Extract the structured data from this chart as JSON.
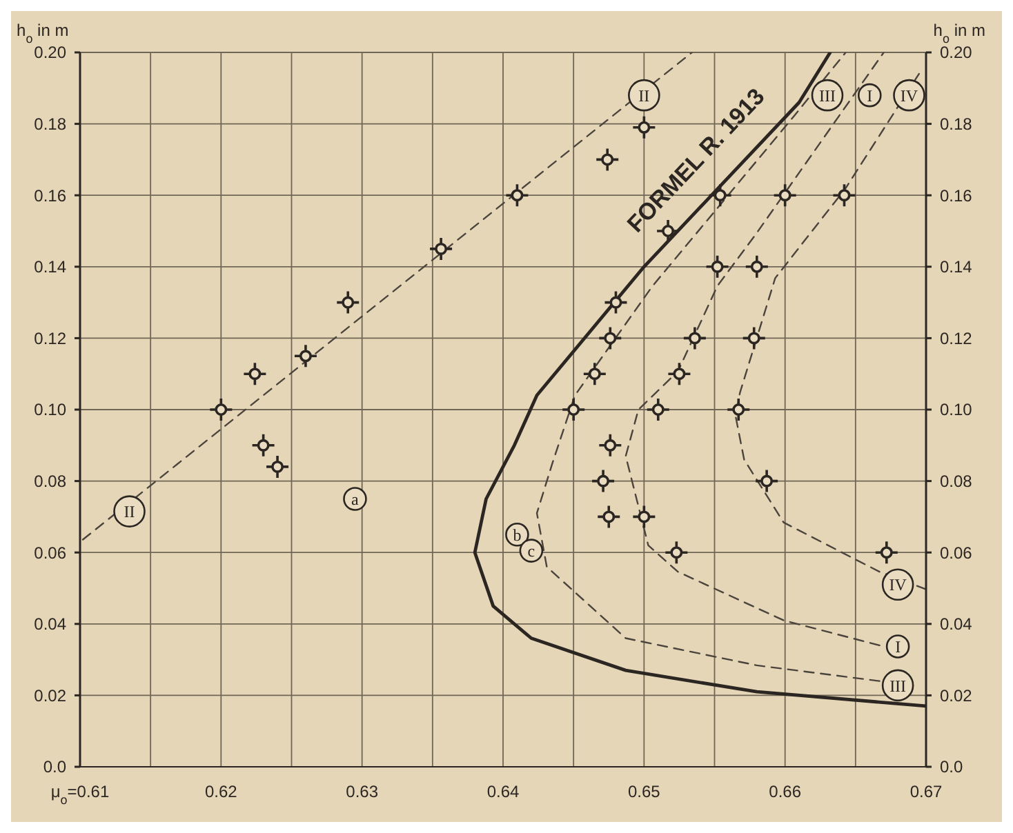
{
  "chart_data": {
    "type": "scatter",
    "ylabel": "h$_{o}$ in m",
    "y2label": "h$_{o}$ in m",
    "xlim": [
      0.61,
      0.67
    ],
    "xticks": [
      {
        "value": 0.61,
        "label": "μ$_{o}$=0.61"
      },
      {
        "value": 0.615,
        "label": null
      },
      {
        "value": 0.62,
        "label": "0.62"
      },
      {
        "value": 0.625,
        "label": null
      },
      {
        "value": 0.63,
        "label": "0.63"
      },
      {
        "value": 0.635,
        "label": null
      },
      {
        "value": 0.64,
        "label": "0.64"
      },
      {
        "value": 0.645,
        "label": null
      },
      {
        "value": 0.65,
        "label": "0.65"
      },
      {
        "value": 0.655,
        "label": null
      },
      {
        "value": 0.66,
        "label": "0.66"
      },
      {
        "value": 0.665,
        "label": null
      },
      {
        "value": 0.67,
        "label": "0.67"
      }
    ],
    "ylim": [
      0,
      0.2
    ],
    "yticks": [
      {
        "value": 0,
        "label": "0.0"
      },
      {
        "value": 0.02,
        "label": "0.02"
      },
      {
        "value": 0.04,
        "label": "0.04"
      },
      {
        "value": 0.06,
        "label": "0.06"
      },
      {
        "value": 0.08,
        "label": "0.08"
      },
      {
        "value": 0.1,
        "label": "0.10"
      },
      {
        "value": 0.12,
        "label": "0.12"
      },
      {
        "value": 0.14,
        "label": "0.14"
      },
      {
        "value": 0.16,
        "label": "0.16"
      },
      {
        "value": 0.18,
        "label": "0.18"
      },
      {
        "value": 0.2,
        "label": "0.20"
      }
    ],
    "y2lim": [
      0,
      0.2
    ],
    "y2ticks": [
      {
        "value": 0,
        "label": "0.0"
      },
      {
        "value": 0.02,
        "label": "0.02"
      },
      {
        "value": 0.04,
        "label": "0.04"
      },
      {
        "value": 0.06,
        "label": "0.06"
      },
      {
        "value": 0.08,
        "label": "0.08"
      },
      {
        "value": 0.1,
        "label": "0.10"
      },
      {
        "value": 0.12,
        "label": "0.12"
      },
      {
        "value": 0.14,
        "label": "0.14"
      },
      {
        "value": 0.16,
        "label": "0.16"
      },
      {
        "value": 0.18,
        "label": "0.18"
      },
      {
        "value": 0.2,
        "label": "0.20"
      }
    ],
    "grid": true,
    "series": [
      {
        "color": "#2b2622",
        "marker": "cross",
        "x": [
          0.6356,
          0.629,
          0.626,
          0.6224,
          0.62,
          0.623,
          0.624,
          0.65,
          0.6474,
          0.641,
          0.6554,
          0.66,
          0.6642,
          0.6517,
          0.6552,
          0.658,
          0.648,
          0.6476,
          0.6536,
          0.6578,
          0.6465,
          0.6525,
          0.645,
          0.651,
          0.6567,
          0.6476,
          0.6471,
          0.6587,
          0.6475,
          0.65,
          0.6523,
          0.6672
        ],
        "values": [
          0.145,
          0.13,
          0.115,
          0.11,
          0.1,
          0.09,
          0.084,
          0.179,
          0.17,
          0.16,
          0.16,
          0.16,
          0.16,
          0.15,
          0.14,
          0.14,
          0.13,
          0.12,
          0.12,
          0.12,
          0.11,
          0.11,
          0.1,
          0.1,
          0.1,
          0.09,
          0.08,
          0.08,
          0.07,
          0.07,
          0.06,
          0.06
        ]
      },
      {
        "type": "line",
        "name": "FORMEL R. 1913",
        "color": "#2b2622",
        "line_style": "solid",
        "marker": "none",
        "x": [
          0.67,
          0.658,
          0.6487,
          0.642,
          0.6393,
          0.638,
          0.6388,
          0.6408,
          0.6424,
          0.65,
          0.661,
          0.6632
        ],
        "values": [
          0.017,
          0.021,
          0.027,
          0.036,
          0.045,
          0.06,
          0.075,
          0.09,
          0.104,
          0.14,
          0.186,
          0.2
        ]
      },
      {
        "type": "line",
        "color": "#4a443c",
        "line_style": "dashed",
        "marker": "none",
        "x": [
          0.6102,
          0.6534
        ],
        "values": [
          0.0636,
          0.2
        ]
      },
      {
        "type": "line",
        "color": "#4a443c",
        "line_style": "dashed",
        "marker": "none",
        "x": [
          0.6667,
          0.658,
          0.6487,
          0.6431,
          0.6424,
          0.6435,
          0.6451,
          0.6506,
          0.6606,
          0.6643
        ],
        "values": [
          0.024,
          0.0284,
          0.036,
          0.056,
          0.071,
          0.085,
          0.104,
          0.1346,
          0.182,
          0.2
        ]
      },
      {
        "type": "line",
        "color": "#4a443c",
        "line_style": "dashed",
        "marker": "none",
        "x": [
          0.6667,
          0.6599,
          0.6524,
          0.6503,
          0.6487,
          0.6496,
          0.6524,
          0.6552,
          0.658,
          0.667
        ],
        "values": [
          0.034,
          0.041,
          0.0546,
          0.062,
          0.087,
          0.1,
          0.1107,
          0.1346,
          0.1495,
          0.2
        ]
      },
      {
        "type": "line",
        "color": "#4a443c",
        "line_style": "dashed",
        "marker": "none",
        "x": [
          0.67,
          0.6667,
          0.6599,
          0.6571,
          0.6565,
          0.6568,
          0.6593,
          0.6643,
          0.6695
        ],
        "values": [
          0.0497,
          0.0546,
          0.0684,
          0.086,
          0.098,
          0.1047,
          0.1368,
          0.162,
          0.194
        ]
      }
    ],
    "annotations": [
      {
        "text": "II",
        "x": 0.65,
        "y": 0.188
      },
      {
        "text": "II",
        "x": 0.6135,
        "y": 0.0715
      },
      {
        "text": "III",
        "x": 0.663,
        "y": 0.188
      },
      {
        "text": "I",
        "x": 0.666,
        "y": 0.188
      },
      {
        "text": "IV",
        "x": 0.6688,
        "y": 0.188
      },
      {
        "text": "IV",
        "x": 0.668,
        "y": 0.051
      },
      {
        "text": "I",
        "x": 0.668,
        "y": 0.0337
      },
      {
        "text": "III",
        "x": 0.668,
        "y": 0.0228
      },
      {
        "text": "a",
        "x": 0.6295,
        "y": 0.075
      },
      {
        "text": "b",
        "x": 0.641,
        "y": 0.065
      },
      {
        "text": "c",
        "x": 0.642,
        "y": 0.0605
      }
    ]
  }
}
